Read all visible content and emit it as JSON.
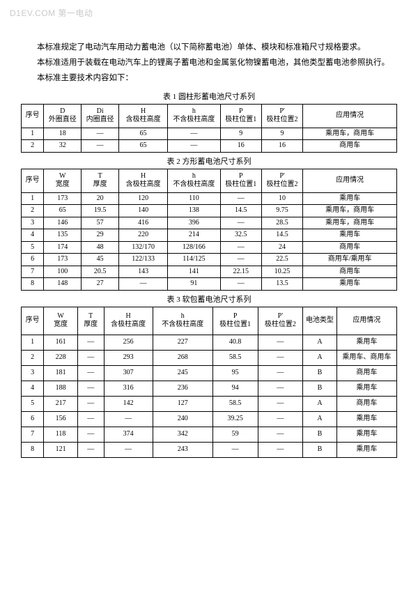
{
  "watermark": "D1EV.COM 第一电动",
  "paragraphs": [
    "本标准规定了电动汽车用动力蓄电池（以下简称蓄电池）单体、模块和标准箱尺寸规格要求。",
    "本标准适用于装载在电动汽车上的锂离子蓄电池和金属氢化物镍蓄电池，其他类型蓄电池参照执行。",
    "本标准主要技术内容如下："
  ],
  "table1": {
    "title": "表 1  圆柱形蓄电池尺寸系列",
    "headers": [
      "序号",
      "D\n外圈直径",
      "Di\n内圈直径",
      "H\n含极柱高度",
      "h\n不含极柱高度",
      "P\n极柱位置1",
      "P'\n极柱位置2",
      "应用情况"
    ],
    "col_widths": [
      "6%",
      "10%",
      "10%",
      "13%",
      "14%",
      "11%",
      "11%",
      "25%"
    ],
    "rows": [
      [
        "1",
        "18",
        "—",
        "65",
        "—",
        "9",
        "9",
        "乘用车，商用车"
      ],
      [
        "2",
        "32",
        "—",
        "65",
        "—",
        "16",
        "16",
        "商用车"
      ]
    ]
  },
  "table2": {
    "title": "表 2  方形蓄电池尺寸系列",
    "headers": [
      "序号",
      "W\n宽度",
      "T\n厚度",
      "H\n含极柱高度",
      "h\n不含极柱高度",
      "P\n极柱位置1",
      "P'\n极柱位置2",
      "应用情况"
    ],
    "col_widths": [
      "6%",
      "10%",
      "10%",
      "13%",
      "14%",
      "11%",
      "11%",
      "25%"
    ],
    "rows": [
      [
        "1",
        "173",
        "20",
        "120",
        "110",
        "—",
        "10",
        "乘用车"
      ],
      [
        "2",
        "65",
        "19.5",
        "140",
        "138",
        "14.5",
        "9.75",
        "乘用车，商用车"
      ],
      [
        "3",
        "146",
        "57",
        "416",
        "396",
        "—",
        "28.5",
        "乘用车，商用车"
      ],
      [
        "4",
        "135",
        "29",
        "220",
        "214",
        "32.5",
        "14.5",
        "乘用车"
      ],
      [
        "5",
        "174",
        "48",
        "132/170",
        "128/166",
        "—",
        "24",
        "商用车"
      ],
      [
        "6",
        "173",
        "45",
        "122/133",
        "114/125",
        "—",
        "22.5",
        "商用车/乘用车"
      ],
      [
        "7",
        "100",
        "20.5",
        "143",
        "141",
        "22.15",
        "10.25",
        "商用车"
      ],
      [
        "8",
        "148",
        "27",
        "—",
        "91",
        "—",
        "13.5",
        "乘用车"
      ]
    ]
  },
  "table3": {
    "title": "表 3  软包蓄电池尺寸系列",
    "headers": [
      "序号",
      "W\n宽度",
      "T\n厚度",
      "H\n含极柱高度",
      "h\n不含极柱高度",
      "P\n极柱位置1",
      "P'\n极柱位置2",
      "电池类型",
      "应用情况"
    ],
    "col_widths": [
      "6%",
      "9%",
      "7%",
      "13%",
      "16%",
      "12%",
      "12%",
      "9%",
      "16%"
    ],
    "rows": [
      [
        "1",
        "161",
        "—",
        "256",
        "227",
        "40.8",
        "—",
        "A",
        "乘用车"
      ],
      [
        "2",
        "228",
        "—",
        "293",
        "268",
        "58.5",
        "—",
        "A",
        "乘用车、商用车"
      ],
      [
        "3",
        "181",
        "—",
        "307",
        "245",
        "95",
        "—",
        "B",
        "商用车"
      ],
      [
        "4",
        "188",
        "—",
        "316",
        "236",
        "94",
        "—",
        "B",
        "乘用车"
      ],
      [
        "5",
        "217",
        "—",
        "142",
        "127",
        "58.5",
        "—",
        "A",
        "商用车"
      ],
      [
        "6",
        "156",
        "—",
        "—",
        "240",
        "39.25",
        "—",
        "A",
        "乘用车"
      ],
      [
        "7",
        "118",
        "—",
        "374",
        "342",
        "59",
        "—",
        "B",
        "乘用车"
      ],
      [
        "8",
        "121",
        "—",
        "—",
        "243",
        "—",
        "—",
        "B",
        "乘用车"
      ]
    ]
  }
}
